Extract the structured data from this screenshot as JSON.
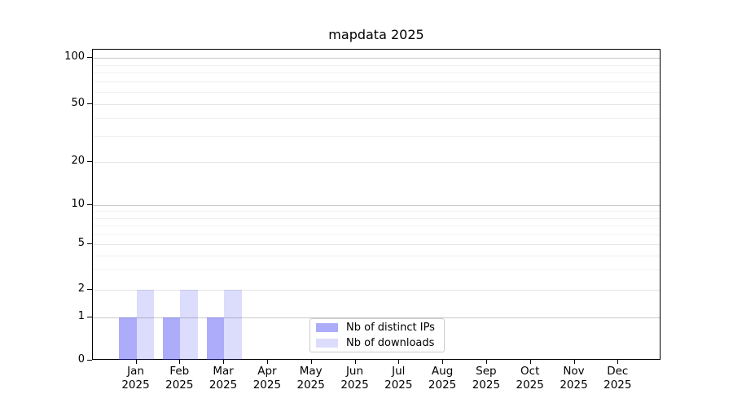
{
  "chart_data": {
    "type": "bar",
    "title": "mapdata 2025",
    "xlabel": "",
    "ylabel": "",
    "categories": [
      "Jan 2025",
      "Feb 2025",
      "Mar 2025",
      "Apr 2025",
      "May 2025",
      "Jun 2025",
      "Jul 2025",
      "Aug 2025",
      "Sep 2025",
      "Oct 2025",
      "Nov 2025",
      "Dec 2025"
    ],
    "x_tick_lines": [
      {
        "month": "Jan",
        "year": "2025"
      },
      {
        "month": "Feb",
        "year": "2025"
      },
      {
        "month": "Mar",
        "year": "2025"
      },
      {
        "month": "Apr",
        "year": "2025"
      },
      {
        "month": "May",
        "year": "2025"
      },
      {
        "month": "Jun",
        "year": "2025"
      },
      {
        "month": "Jul",
        "year": "2025"
      },
      {
        "month": "Aug",
        "year": "2025"
      },
      {
        "month": "Sep",
        "year": "2025"
      },
      {
        "month": "Oct",
        "year": "2025"
      },
      {
        "month": "Nov",
        "year": "2025"
      },
      {
        "month": "Dec",
        "year": "2025"
      }
    ],
    "series": [
      {
        "name": "Nb of distinct IPs",
        "color": "rgba(30,30,245,0.37)",
        "approx_hex": "#a9a9f7",
        "values": [
          1,
          1,
          1,
          0,
          0,
          0,
          0,
          0,
          0,
          0,
          0,
          0
        ]
      },
      {
        "name": "Nb of downloads",
        "color": "rgba(30,30,245,0.155)",
        "approx_hex": "#dbdbfa",
        "values": [
          2,
          2,
          2,
          0,
          0,
          0,
          0,
          0,
          0,
          0,
          0,
          0
        ]
      }
    ],
    "yscale": "symlog",
    "ylim": [
      0,
      113
    ],
    "ytick_values": [
      100,
      50,
      20,
      10,
      5,
      2,
      1,
      0
    ],
    "ytick_labels": [
      "100",
      "50",
      "20",
      "10",
      "5",
      "2",
      "1",
      "0"
    ],
    "y_anchor_fractions": [
      [
        0,
        1.0
      ],
      [
        1,
        0.861
      ],
      [
        2,
        0.772
      ],
      [
        5,
        0.626
      ],
      [
        10,
        0.5
      ],
      [
        20,
        0.361
      ],
      [
        50,
        0.174
      ],
      [
        100,
        0.026
      ]
    ],
    "gridlines": {
      "major_values": [
        1,
        10,
        100
      ],
      "mid_values": [
        2,
        5,
        20,
        50
      ],
      "minor_values": [
        3,
        4,
        6,
        7,
        8,
        9,
        30,
        40,
        60,
        70,
        80,
        90
      ],
      "major_color": "#c9c9c9",
      "mid_color": "#e6e6e6",
      "minor_color": "#f1f1f1"
    },
    "grid": true,
    "legend_position": "lower center, inside plot",
    "legend": {
      "items": [
        {
          "label": "Nb of distinct IPs",
          "color": "rgba(30,30,245,0.37)"
        },
        {
          "label": "Nb of downloads",
          "color": "rgba(30,30,245,0.155)"
        }
      ]
    }
  }
}
